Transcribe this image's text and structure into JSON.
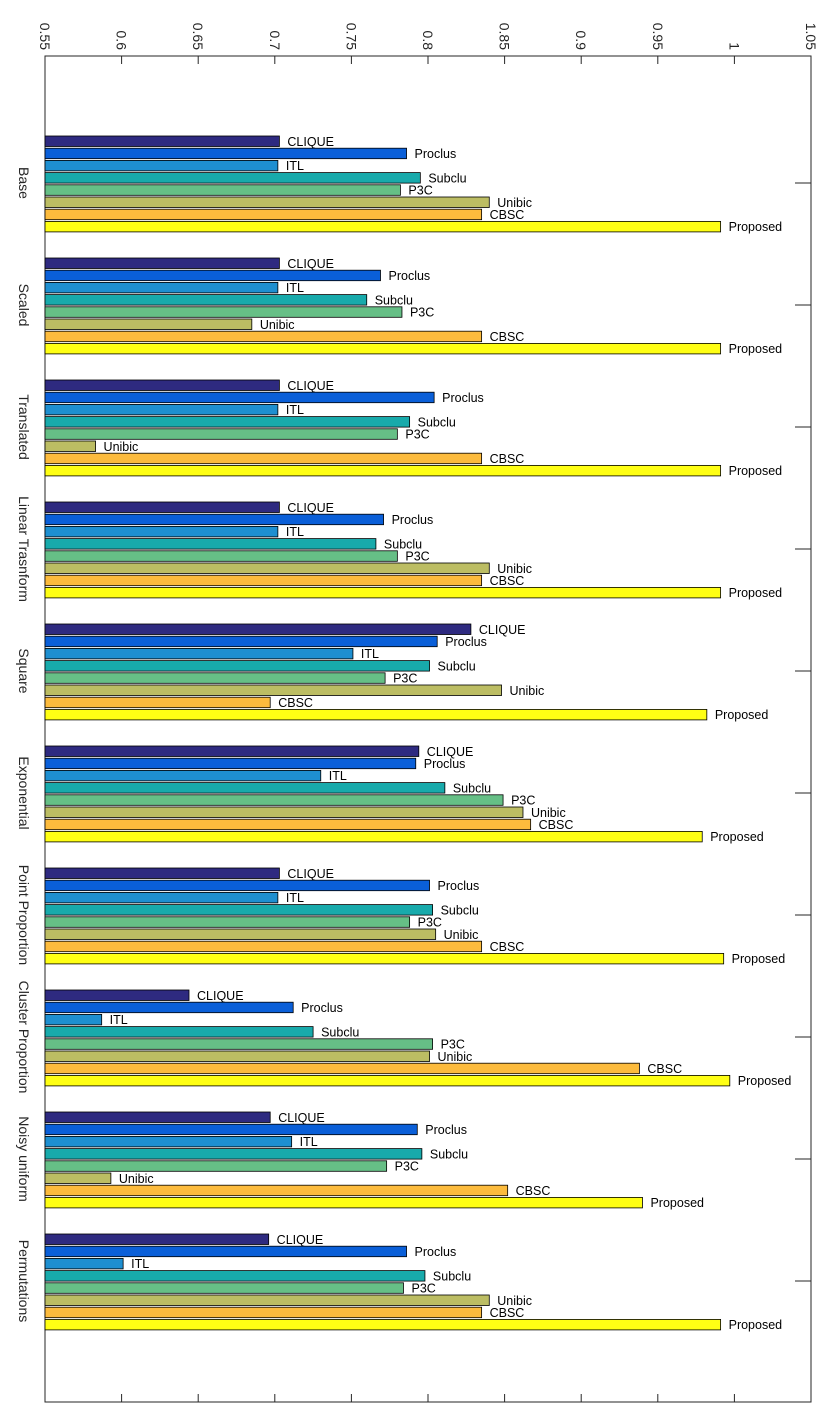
{
  "chart_data": {
    "type": "bar",
    "orientation": "horizontal",
    "title": "",
    "xlabel": "",
    "ylabel": "",
    "xlim": [
      0.55,
      1.05
    ],
    "xticks": [
      "0.55",
      "0.6",
      "0.65",
      "0.7",
      "0.75",
      "0.8",
      "0.85",
      "0.9",
      "0.95",
      "1",
      "1.05"
    ],
    "grid": false,
    "categories": [
      "Base",
      "Scaled",
      "Translated",
      "Linear Trasnform",
      "Square",
      "Exponential",
      "Point Proportion",
      "Cluster Proportion",
      "Noisy uniform",
      "Permutations"
    ],
    "series": [
      {
        "name": "CLIQUE",
        "color": "#2e2a80",
        "values": [
          0.703,
          0.703,
          0.703,
          0.703,
          0.828,
          0.794,
          0.703,
          0.644,
          0.697,
          0.696
        ]
      },
      {
        "name": "Proclus",
        "color": "#0a5fd8",
        "values": [
          0.786,
          0.769,
          0.804,
          0.771,
          0.806,
          0.792,
          0.801,
          0.712,
          0.793,
          0.786
        ]
      },
      {
        "name": "ITL",
        "color": "#1e8fd0",
        "values": [
          0.702,
          0.702,
          0.702,
          0.702,
          0.751,
          0.73,
          0.702,
          0.587,
          0.711,
          0.601
        ]
      },
      {
        "name": "Subclu",
        "color": "#18aaab",
        "values": [
          0.795,
          0.76,
          0.788,
          0.766,
          0.801,
          0.811,
          0.803,
          0.725,
          0.796,
          0.798
        ]
      },
      {
        "name": "P3C",
        "color": "#66bf86",
        "values": [
          0.782,
          0.783,
          0.78,
          0.78,
          0.772,
          0.849,
          0.788,
          0.803,
          0.773,
          0.784
        ]
      },
      {
        "name": "Unibic",
        "color": "#bcbd63",
        "values": [
          0.84,
          0.685,
          0.583,
          0.84,
          0.848,
          0.862,
          0.805,
          0.801,
          0.593,
          0.84
        ]
      },
      {
        "name": "CBSC",
        "color": "#fcbb3d",
        "values": [
          0.835,
          0.835,
          0.835,
          0.835,
          0.697,
          0.867,
          0.835,
          0.938,
          0.852,
          0.835
        ]
      },
      {
        "name": "Proposed",
        "color": "#ffff14",
        "values": [
          0.991,
          0.991,
          0.991,
          0.991,
          0.982,
          0.979,
          0.993,
          0.997,
          0.94,
          0.991
        ]
      }
    ]
  }
}
